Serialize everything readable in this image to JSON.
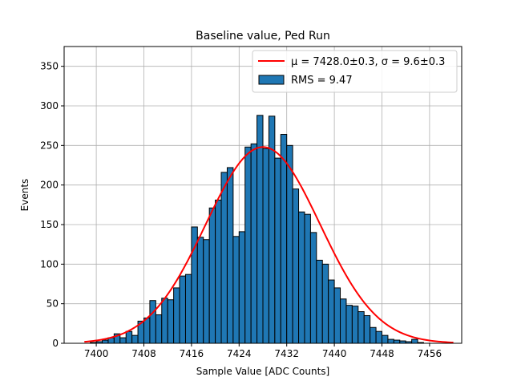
{
  "chart_data": {
    "type": "bar",
    "title": "Baseline value, Ped Run",
    "xlabel": "Sample Value [ADC Counts]",
    "ylabel": "Events",
    "xlim": [
      7394.6,
      7461.4
    ],
    "ylim": [
      0,
      375
    ],
    "x_ticks": [
      7400,
      7408,
      7416,
      7424,
      7432,
      7440,
      7448,
      7456
    ],
    "y_ticks": [
      0,
      50,
      100,
      150,
      200,
      250,
      300,
      350
    ],
    "grid": true,
    "legend_position": "top-right",
    "bin_width": 1,
    "bin_edges_start": 7398,
    "bin_counts": [
      0,
      1,
      2,
      4,
      7,
      12,
      7,
      15,
      10,
      28,
      32,
      54,
      36,
      57,
      55,
      70,
      85,
      87,
      147,
      134,
      131,
      171,
      181,
      216,
      222,
      135,
      141,
      248,
      252,
      288,
      246,
      287,
      234,
      264,
      250,
      195,
      166,
      163,
      140,
      105,
      100,
      80,
      70,
      56,
      48,
      47,
      40,
      35,
      20,
      15,
      10,
      5,
      4,
      3,
      2,
      5,
      1,
      0
    ],
    "hist_color": "#1f77b4",
    "fit": {
      "mu": 7428.0,
      "sigma": 9.6,
      "amplitude": 248,
      "x_range": [
        7398,
        7460
      ],
      "color": "#ff0000"
    },
    "legend": {
      "fit_label": "μ = 7428.0±0.3, σ = 9.6±0.3",
      "hist_label": "RMS = 9.47"
    }
  }
}
